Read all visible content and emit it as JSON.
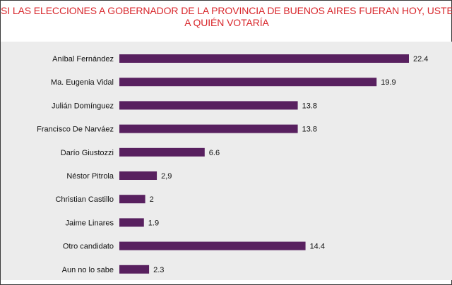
{
  "chart_data": {
    "type": "bar",
    "orientation": "horizontal",
    "title_line1": "SI LAS ELECCIONES A GOBERNADOR DE LA PROVINCIA DE BUENOS AIRES FUERAN HOY, USTED",
    "title_line2": "A QUIÉN VOTARÍA",
    "categories": [
      "Aníbal Fernández",
      "Ma. Eugenia Vidal",
      "Julián Domínguez",
      "Francisco De Narváez",
      "Darío Giustozzi",
      "Néstor Pitrola",
      "Christian Castillo",
      "Jaime Linares",
      "Otro candidato",
      "Aun no lo sabe"
    ],
    "values": [
      22.4,
      19.9,
      13.8,
      13.8,
      6.6,
      2.9,
      2,
      1.9,
      14.4,
      2.3
    ],
    "value_labels": [
      "22.4",
      "19.9",
      "13.8",
      "13.8",
      "6.6",
      "2,9",
      "2",
      "1.9",
      "14.4",
      "2.3"
    ],
    "xlim": [
      0,
      22.4
    ],
    "bar_color": "#58205f",
    "title_color": "#d8262b",
    "grid": false,
    "legend": "none"
  }
}
